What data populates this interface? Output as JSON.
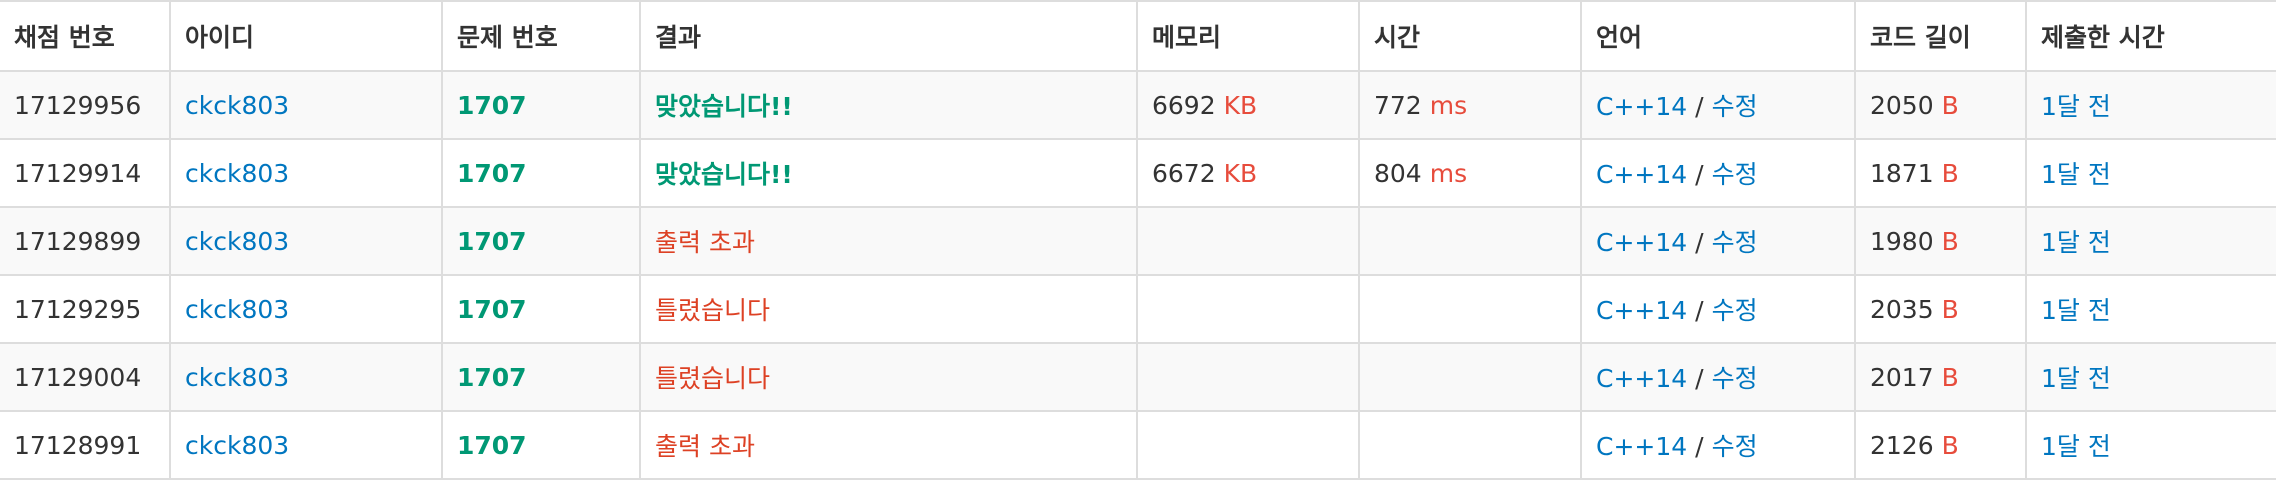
{
  "columns": [
    "채점 번호",
    "아이디",
    "문제 번호",
    "결과",
    "메모리",
    "시간",
    "언어",
    "코드 길이",
    "제출한 시간"
  ],
  "units": {
    "memory": "KB",
    "time": "ms",
    "code": "B"
  },
  "language_separator": "/",
  "colors": {
    "link": "#0076c0",
    "accepted": "#009874",
    "wrong": "#dd4124",
    "unit": "#e74c3c",
    "border": "#dddddd",
    "stripe": "#f9f9f9"
  },
  "rows": [
    {
      "id": "17129956",
      "user": "ckck803",
      "problem": "1707",
      "result": "맞았습니다!!",
      "result_type": "ac",
      "memory": "6692",
      "time": "772",
      "language": "C++14",
      "edit": "수정",
      "code_length": "2050",
      "submitted": "1달 전"
    },
    {
      "id": "17129914",
      "user": "ckck803",
      "problem": "1707",
      "result": "맞았습니다!!",
      "result_type": "ac",
      "memory": "6672",
      "time": "804",
      "language": "C++14",
      "edit": "수정",
      "code_length": "1871",
      "submitted": "1달 전"
    },
    {
      "id": "17129899",
      "user": "ckck803",
      "problem": "1707",
      "result": "출력 초과",
      "result_type": "ole",
      "memory": "",
      "time": "",
      "language": "C++14",
      "edit": "수정",
      "code_length": "1980",
      "submitted": "1달 전"
    },
    {
      "id": "17129295",
      "user": "ckck803",
      "problem": "1707",
      "result": "틀렸습니다",
      "result_type": "wa",
      "memory": "",
      "time": "",
      "language": "C++14",
      "edit": "수정",
      "code_length": "2035",
      "submitted": "1달 전"
    },
    {
      "id": "17129004",
      "user": "ckck803",
      "problem": "1707",
      "result": "틀렸습니다",
      "result_type": "wa",
      "memory": "",
      "time": "",
      "language": "C++14",
      "edit": "수정",
      "code_length": "2017",
      "submitted": "1달 전"
    },
    {
      "id": "17128991",
      "user": "ckck803",
      "problem": "1707",
      "result": "출력 초과",
      "result_type": "ole",
      "memory": "",
      "time": "",
      "language": "C++14",
      "edit": "수정",
      "code_length": "2126",
      "submitted": "1달 전"
    }
  ]
}
